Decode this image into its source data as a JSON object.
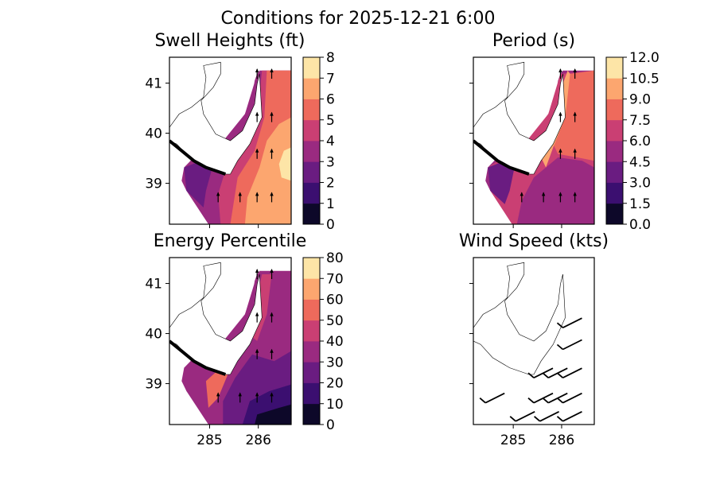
{
  "figure_title": "Conditions for 2025-12-21 6:00",
  "colors": {
    "frame": "#000000",
    "land": "#ffffff"
  },
  "chart_data": [
    {
      "type": "heatmap",
      "name": "swell-heights",
      "title": "Swell Heights (ft)",
      "xticks": [
        "285",
        "286"
      ],
      "yticks": [
        "41",
        "40",
        "39"
      ],
      "show_yticklabels": true,
      "show_xticklabels": false,
      "colorbar": {
        "ticks": [
          "8",
          "7",
          "6",
          "5",
          "4",
          "3",
          "2",
          "1",
          "0"
        ],
        "range": [
          0,
          8
        ],
        "levels": 8
      },
      "arrows": [
        [
          0.72,
          0.1
        ],
        [
          0.84,
          0.1
        ],
        [
          0.72,
          0.36
        ],
        [
          0.84,
          0.36
        ],
        [
          0.72,
          0.58
        ],
        [
          0.84,
          0.58
        ],
        [
          0.4,
          0.84
        ],
        [
          0.58,
          0.84
        ],
        [
          0.72,
          0.84
        ],
        [
          0.84,
          0.84
        ]
      ]
    },
    {
      "type": "heatmap",
      "name": "period",
      "title": "Period (s)",
      "xticks": [
        "285",
        "286"
      ],
      "yticks": [
        "41",
        "40",
        "39"
      ],
      "show_yticklabels": false,
      "show_xticklabels": false,
      "colorbar": {
        "ticks": [
          "12.0",
          "10.5",
          "9.0",
          "7.5",
          "6.0",
          "4.5",
          "3.0",
          "1.5",
          "0.0"
        ],
        "range": [
          0,
          12
        ],
        "levels": 8
      },
      "arrows": [
        [
          0.72,
          0.1
        ],
        [
          0.84,
          0.1
        ],
        [
          0.72,
          0.36
        ],
        [
          0.84,
          0.36
        ],
        [
          0.72,
          0.58
        ],
        [
          0.84,
          0.58
        ],
        [
          0.4,
          0.84
        ],
        [
          0.58,
          0.84
        ],
        [
          0.72,
          0.84
        ],
        [
          0.84,
          0.84
        ]
      ]
    },
    {
      "type": "heatmap",
      "name": "energy-percentile",
      "title": "Energy Percentile",
      "xticks": [
        "285",
        "286"
      ],
      "yticks": [
        "41",
        "40",
        "39"
      ],
      "show_yticklabels": true,
      "show_xticklabels": true,
      "colorbar": {
        "ticks": [
          "80",
          "70",
          "60",
          "50",
          "40",
          "30",
          "20",
          "10",
          "0"
        ],
        "range": [
          0,
          80
        ],
        "levels": 8
      },
      "arrows": [
        [
          0.72,
          0.1
        ],
        [
          0.84,
          0.1
        ],
        [
          0.72,
          0.36
        ],
        [
          0.84,
          0.36
        ],
        [
          0.72,
          0.58
        ],
        [
          0.84,
          0.58
        ],
        [
          0.4,
          0.84
        ],
        [
          0.58,
          0.84
        ],
        [
          0.72,
          0.84
        ],
        [
          0.84,
          0.84
        ]
      ]
    },
    {
      "type": "scatter",
      "name": "wind-speed",
      "title": "Wind Speed (kts)",
      "xticks": [
        "285",
        "286"
      ],
      "yticks": [
        "41",
        "40",
        "39"
      ],
      "show_yticklabels": false,
      "show_xticklabels": true,
      "barbs": [
        [
          0.74,
          0.42
        ],
        [
          0.74,
          0.55
        ],
        [
          0.5,
          0.72
        ],
        [
          0.62,
          0.72
        ],
        [
          0.74,
          0.72
        ],
        [
          0.1,
          0.87
        ],
        [
          0.5,
          0.87
        ],
        [
          0.62,
          0.87
        ],
        [
          0.74,
          0.87
        ],
        [
          0.35,
          0.98
        ],
        [
          0.55,
          0.98
        ],
        [
          0.74,
          0.98
        ]
      ]
    }
  ]
}
